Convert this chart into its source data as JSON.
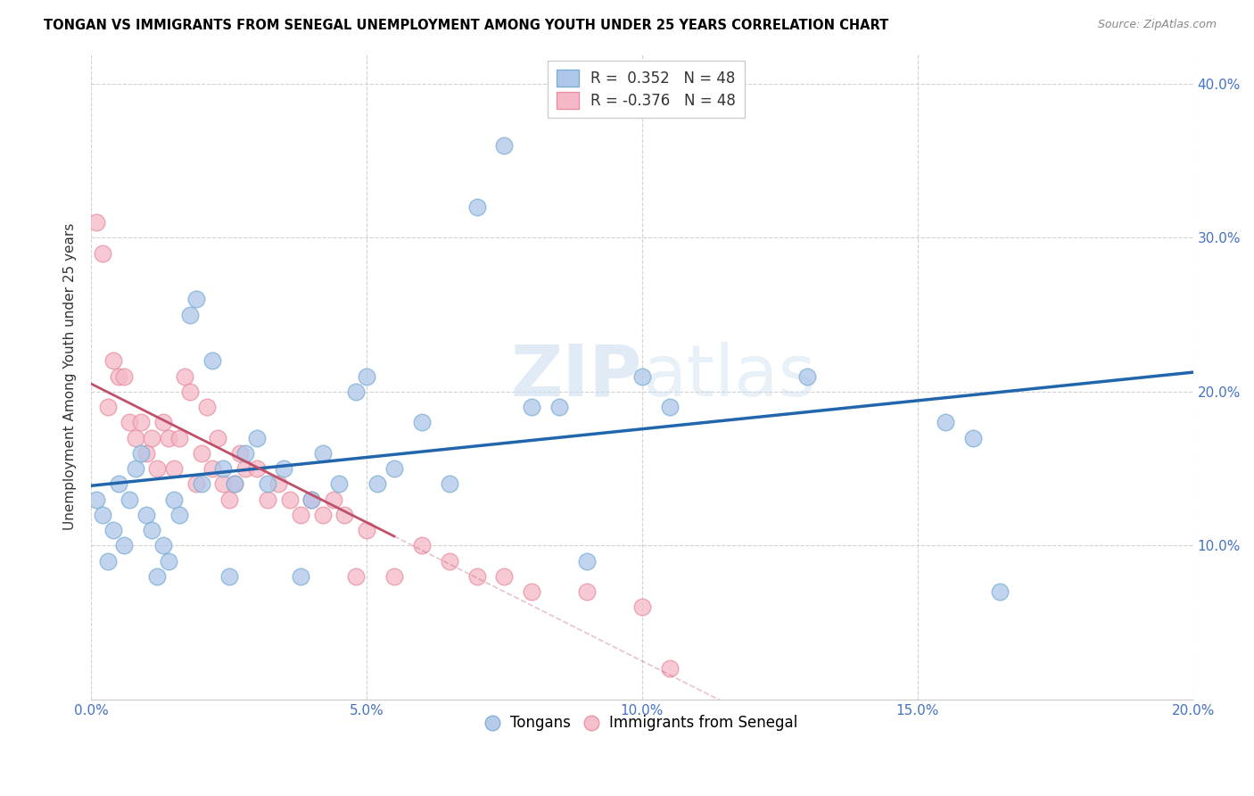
{
  "title": "TONGAN VS IMMIGRANTS FROM SENEGAL UNEMPLOYMENT AMONG YOUTH UNDER 25 YEARS CORRELATION CHART",
  "source": "Source: ZipAtlas.com",
  "ylabel": "Unemployment Among Youth under 25 years",
  "xlim": [
    0,
    0.2
  ],
  "ylim": [
    0,
    0.42
  ],
  "xticks": [
    0.0,
    0.05,
    0.1,
    0.15,
    0.2
  ],
  "yticks": [
    0.0,
    0.1,
    0.2,
    0.3,
    0.4
  ],
  "legend_labels": [
    "Tongans",
    "Immigrants from Senegal"
  ],
  "r_tongan": 0.352,
  "r_senegal": -0.376,
  "n_tongan": 48,
  "n_senegal": 48,
  "blue_scatter_face": "#aec6e8",
  "blue_scatter_edge": "#7bafd4",
  "pink_scatter_face": "#f4b8c8",
  "pink_scatter_edge": "#e8909f",
  "blue_line_color": "#2166ac",
  "pink_line_color": "#c0506a",
  "watermark_color": "#ccdff0",
  "tongan_x": [
    0.001,
    0.002,
    0.003,
    0.004,
    0.005,
    0.006,
    0.007,
    0.008,
    0.009,
    0.01,
    0.011,
    0.012,
    0.013,
    0.014,
    0.015,
    0.016,
    0.018,
    0.019,
    0.02,
    0.022,
    0.024,
    0.025,
    0.026,
    0.028,
    0.03,
    0.032,
    0.035,
    0.038,
    0.04,
    0.042,
    0.045,
    0.048,
    0.05,
    0.052,
    0.055,
    0.06,
    0.065,
    0.07,
    0.075,
    0.08,
    0.085,
    0.09,
    0.1,
    0.105,
    0.13,
    0.155,
    0.16,
    0.165
  ],
  "tongan_y": [
    0.13,
    0.12,
    0.09,
    0.11,
    0.14,
    0.1,
    0.13,
    0.15,
    0.16,
    0.12,
    0.11,
    0.08,
    0.1,
    0.09,
    0.13,
    0.12,
    0.25,
    0.26,
    0.14,
    0.22,
    0.15,
    0.08,
    0.14,
    0.16,
    0.17,
    0.14,
    0.15,
    0.08,
    0.13,
    0.16,
    0.14,
    0.2,
    0.21,
    0.14,
    0.15,
    0.18,
    0.14,
    0.32,
    0.36,
    0.19,
    0.19,
    0.09,
    0.21,
    0.19,
    0.21,
    0.18,
    0.17,
    0.07
  ],
  "senegal_x": [
    0.001,
    0.002,
    0.003,
    0.004,
    0.005,
    0.006,
    0.007,
    0.008,
    0.009,
    0.01,
    0.011,
    0.012,
    0.013,
    0.014,
    0.015,
    0.016,
    0.017,
    0.018,
    0.019,
    0.02,
    0.021,
    0.022,
    0.023,
    0.024,
    0.025,
    0.026,
    0.027,
    0.028,
    0.03,
    0.032,
    0.034,
    0.036,
    0.038,
    0.04,
    0.042,
    0.044,
    0.046,
    0.048,
    0.05,
    0.055,
    0.06,
    0.065,
    0.07,
    0.075,
    0.08,
    0.09,
    0.1,
    0.105
  ],
  "senegal_y": [
    0.31,
    0.29,
    0.19,
    0.22,
    0.21,
    0.21,
    0.18,
    0.17,
    0.18,
    0.16,
    0.17,
    0.15,
    0.18,
    0.17,
    0.15,
    0.17,
    0.21,
    0.2,
    0.14,
    0.16,
    0.19,
    0.15,
    0.17,
    0.14,
    0.13,
    0.14,
    0.16,
    0.15,
    0.15,
    0.13,
    0.14,
    0.13,
    0.12,
    0.13,
    0.12,
    0.13,
    0.12,
    0.08,
    0.11,
    0.08,
    0.1,
    0.09,
    0.08,
    0.08,
    0.07,
    0.07,
    0.06,
    0.02
  ]
}
